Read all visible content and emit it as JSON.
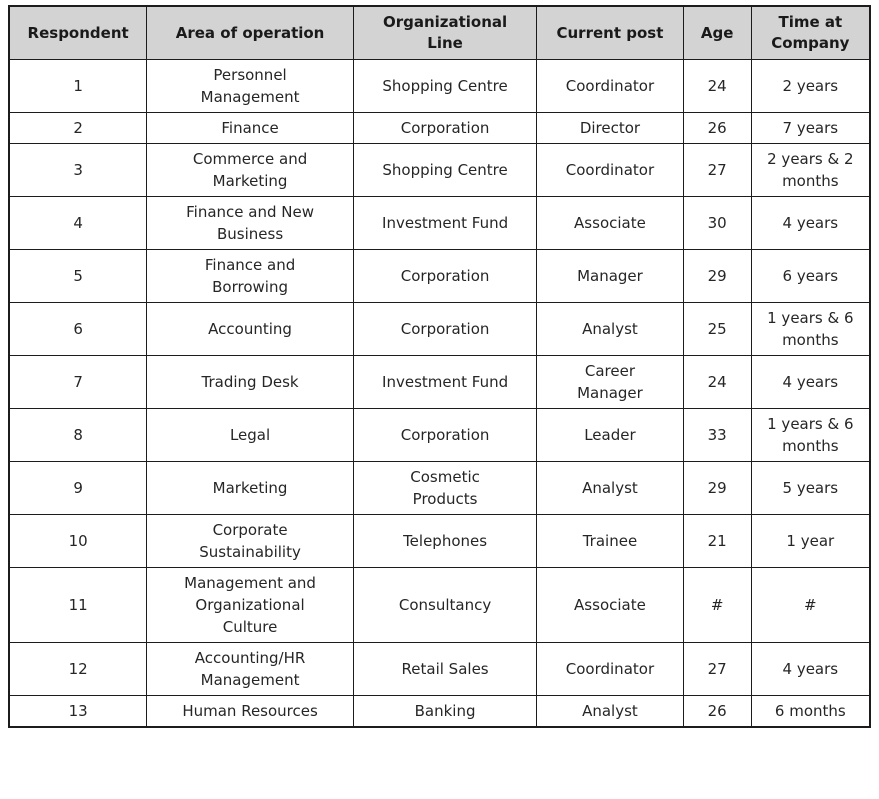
{
  "table": {
    "columns": [
      "Respondent",
      "Area of operation",
      "Organizational\nLine",
      "Current post",
      "Age",
      "Time at\nCompany"
    ],
    "rows": [
      [
        "1",
        "Personnel\nManagement",
        "Shopping Centre",
        "Coordinator",
        "24",
        "2 years"
      ],
      [
        "2",
        "Finance",
        "Corporation",
        "Director",
        "26",
        "7 years"
      ],
      [
        "3",
        "Commerce and\nMarketing",
        "Shopping Centre",
        "Coordinator",
        "27",
        "2 years & 2\nmonths"
      ],
      [
        "4",
        "Finance and New\nBusiness",
        "Investment Fund",
        "Associate",
        "30",
        "4 years"
      ],
      [
        "5",
        "Finance and\nBorrowing",
        "Corporation",
        "Manager",
        "29",
        "6 years"
      ],
      [
        "6",
        "Accounting",
        "Corporation",
        "Analyst",
        "25",
        "1 years & 6\nmonths"
      ],
      [
        "7",
        "Trading Desk",
        "Investment Fund",
        "Career\nManager",
        "24",
        "4 years"
      ],
      [
        "8",
        "Legal",
        "Corporation",
        "Leader",
        "33",
        "1 years & 6\nmonths"
      ],
      [
        "9",
        "Marketing",
        "Cosmetic\nProducts",
        "Analyst",
        "29",
        "5 years"
      ],
      [
        "10",
        "Corporate\nSustainability",
        "Telephones",
        "Trainee",
        "21",
        "1 year"
      ],
      [
        "11",
        "Management and\nOrganizational\nCulture",
        "Consultancy",
        "Associate",
        "#",
        "#"
      ],
      [
        "12",
        "Accounting/HR\nManagement",
        "Retail Sales",
        "Coordinator",
        "27",
        "4 years"
      ],
      [
        "13",
        "Human Resources",
        "Banking",
        "Analyst",
        "26",
        "6 months"
      ]
    ]
  },
  "colors": {
    "header_bg": "#d3d3d3",
    "border": "#1c1c1c",
    "header_text": "#1a1a1a",
    "body_text": "#262626",
    "page_bg": "#ffffff"
  }
}
